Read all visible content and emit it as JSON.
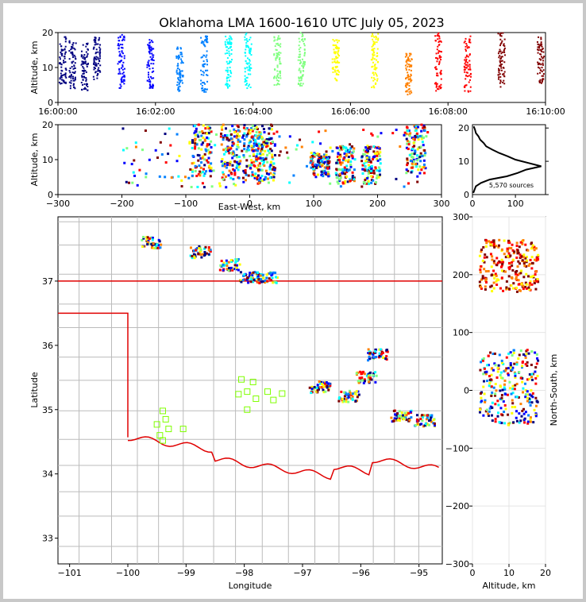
{
  "title": "Oklahoma LMA 1600-1610 UTC July 05, 2023",
  "source_count_label": "5,570 sources",
  "colors": {
    "time_scale": [
      "#000080",
      "#0000ff",
      "#0080ff",
      "#00ffff",
      "#80ff80",
      "#ffff00",
      "#ff8000",
      "#ff0000",
      "#800000"
    ],
    "state_border": "#e00000",
    "county_lines": "#bbbbbb",
    "stations": "#80ff00"
  },
  "chart_data": [
    {
      "id": "altitude-time",
      "type": "scatter",
      "xlabel": "",
      "ylabel": "Altitude, km",
      "x_ticks": [
        "16:00:00",
        "16:02:00",
        "16:04:00",
        "16:06:00",
        "16:08:00",
        "16:10:00"
      ],
      "xlim_minutes": [
        0,
        10
      ],
      "ylim": [
        0,
        20
      ],
      "y_ticks": [
        0,
        10,
        20
      ],
      "clusters": [
        {
          "t": 0.1,
          "alt": [
            5,
            19
          ]
        },
        {
          "t": 0.3,
          "alt": [
            4,
            18
          ]
        },
        {
          "t": 0.55,
          "alt": [
            3,
            17
          ]
        },
        {
          "t": 0.8,
          "alt": [
            6,
            19
          ]
        },
        {
          "t": 1.3,
          "alt": [
            4,
            20
          ]
        },
        {
          "t": 1.9,
          "alt": [
            4,
            18
          ]
        },
        {
          "t": 2.5,
          "alt": [
            3,
            16
          ]
        },
        {
          "t": 3.0,
          "alt": [
            3,
            19
          ]
        },
        {
          "t": 3.5,
          "alt": [
            4,
            19
          ]
        },
        {
          "t": 3.9,
          "alt": [
            4,
            20
          ]
        },
        {
          "t": 4.5,
          "alt": [
            5,
            19
          ]
        },
        {
          "t": 5.0,
          "alt": [
            4,
            20
          ]
        },
        {
          "t": 5.7,
          "alt": [
            6,
            18
          ]
        },
        {
          "t": 6.5,
          "alt": [
            4,
            20
          ]
        },
        {
          "t": 7.2,
          "alt": [
            2,
            14
          ]
        },
        {
          "t": 7.8,
          "alt": [
            3,
            20
          ]
        },
        {
          "t": 8.4,
          "alt": [
            3,
            19
          ]
        },
        {
          "t": 9.1,
          "alt": [
            4,
            20
          ]
        },
        {
          "t": 9.9,
          "alt": [
            5,
            19
          ]
        }
      ]
    },
    {
      "id": "altitude-east-west",
      "type": "scatter",
      "xlabel": "East-West, km",
      "ylabel": "Altitude, km",
      "xlim": [
        -300,
        300
      ],
      "x_ticks": [
        -300,
        -200,
        -100,
        0,
        100,
        200,
        300
      ],
      "ylim": [
        0,
        20
      ],
      "y_ticks": [
        0,
        10,
        20
      ],
      "clusters": [
        {
          "x": -75,
          "alt": [
            5,
            20
          ]
        },
        {
          "x": -30,
          "alt": [
            4,
            20
          ]
        },
        {
          "x": 5,
          "alt": [
            3,
            20
          ]
        },
        {
          "x": 25,
          "alt": [
            3,
            20
          ]
        },
        {
          "x": 110,
          "alt": [
            5,
            12
          ]
        },
        {
          "x": 150,
          "alt": [
            3,
            14
          ]
        },
        {
          "x": 190,
          "alt": [
            3,
            14
          ]
        },
        {
          "x": 260,
          "alt": [
            6,
            20
          ]
        }
      ]
    },
    {
      "id": "altitude-histogram",
      "type": "line",
      "xlim": [
        0,
        170
      ],
      "x_ticks": [
        0,
        100
      ],
      "ylim": [
        0,
        21
      ],
      "y_ticks": [
        0,
        10,
        20
      ],
      "profile": [
        {
          "alt": 0.5,
          "count": 2
        },
        {
          "alt": 1.5,
          "count": 5
        },
        {
          "alt": 2.5,
          "count": 8
        },
        {
          "alt": 3.5,
          "count": 20
        },
        {
          "alt": 4.5,
          "count": 40
        },
        {
          "alt": 5.5,
          "count": 80
        },
        {
          "alt": 6.5,
          "count": 105
        },
        {
          "alt": 7.5,
          "count": 125
        },
        {
          "alt": 8.5,
          "count": 160
        },
        {
          "alt": 9.5,
          "count": 130
        },
        {
          "alt": 10.5,
          "count": 100
        },
        {
          "alt": 11.5,
          "count": 82
        },
        {
          "alt": 12.5,
          "count": 62
        },
        {
          "alt": 13.5,
          "count": 46
        },
        {
          "alt": 14.5,
          "count": 32
        },
        {
          "alt": 15.5,
          "count": 26
        },
        {
          "alt": 16.5,
          "count": 18
        },
        {
          "alt": 17.5,
          "count": 14
        },
        {
          "alt": 18.5,
          "count": 8
        },
        {
          "alt": 19.5,
          "count": 6
        },
        {
          "alt": 20.5,
          "count": 3
        }
      ]
    },
    {
      "id": "plan-view",
      "type": "scatter",
      "xlabel": "Longitude",
      "ylabel": "Latitude",
      "xlim": [
        -101.2,
        -94.6
      ],
      "x_ticks": [
        -101,
        -100,
        -99,
        -98,
        -97,
        -96,
        -95
      ],
      "ylim": [
        32.6,
        38.0
      ],
      "y_ticks": [
        33,
        34,
        35,
        36,
        37
      ],
      "clusters": [
        {
          "lon": -99.6,
          "lat": 37.6
        },
        {
          "lon": -98.75,
          "lat": 37.45
        },
        {
          "lon": -98.25,
          "lat": 37.25
        },
        {
          "lon": -97.9,
          "lat": 37.05
        },
        {
          "lon": -97.6,
          "lat": 37.05
        },
        {
          "lon": -96.7,
          "lat": 35.35
        },
        {
          "lon": -96.2,
          "lat": 35.2
        },
        {
          "lon": -95.9,
          "lat": 35.5
        },
        {
          "lon": -95.7,
          "lat": 35.85
        },
        {
          "lon": -95.3,
          "lat": 34.9
        },
        {
          "lon": -94.9,
          "lat": 34.83
        }
      ],
      "stations": [
        {
          "lon": -99.4,
          "lat": 34.98
        },
        {
          "lon": -99.35,
          "lat": 34.85
        },
        {
          "lon": -99.5,
          "lat": 34.77
        },
        {
          "lon": -99.3,
          "lat": 34.7
        },
        {
          "lon": -99.45,
          "lat": 34.6
        },
        {
          "lon": -99.4,
          "lat": 34.52
        },
        {
          "lon": -99.05,
          "lat": 34.7
        },
        {
          "lon": -98.05,
          "lat": 35.47
        },
        {
          "lon": -98.1,
          "lat": 35.24
        },
        {
          "lon": -97.95,
          "lat": 35.28
        },
        {
          "lon": -97.85,
          "lat": 35.43
        },
        {
          "lon": -97.8,
          "lat": 35.17
        },
        {
          "lon": -97.95,
          "lat": 35.0
        },
        {
          "lon": -97.6,
          "lat": 35.28
        },
        {
          "lon": -97.5,
          "lat": 35.15
        },
        {
          "lon": -97.35,
          "lat": 35.25
        }
      ]
    },
    {
      "id": "north-south-altitude",
      "type": "scatter",
      "xlabel": "Altitude, km",
      "ylabel": "North-South, km",
      "xlim": [
        0,
        20
      ],
      "x_ticks": [
        0,
        10,
        20
      ],
      "ylim": [
        -300,
        300
      ],
      "y_ticks": [
        -300,
        -200,
        -100,
        0,
        100,
        200,
        300
      ]
    }
  ]
}
